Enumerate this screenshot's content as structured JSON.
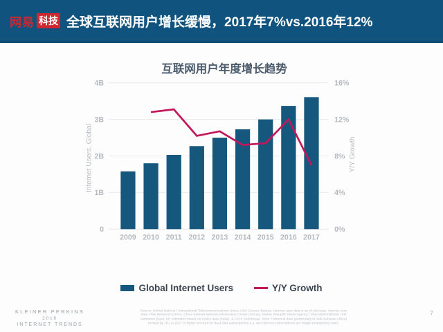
{
  "header": {
    "logo": {
      "brand": "网易",
      "sub": "科技"
    },
    "title": "全球互联网用户增长缓慢，2017年7%vs.2016年12%"
  },
  "chart_data": {
    "type": "combo-bar-line",
    "title": "互联网用户年度增长趋势",
    "categories": [
      "2009",
      "2010",
      "2011",
      "2012",
      "2013",
      "2014",
      "2015",
      "2016",
      "2017"
    ],
    "series": [
      {
        "name": "Global Internet Users",
        "type": "bar",
        "axis": "left",
        "unit": "B",
        "color": "#16587d",
        "values": [
          1.58,
          1.8,
          2.03,
          2.27,
          2.5,
          2.73,
          3.0,
          3.37,
          3.61
        ]
      },
      {
        "name": "Y/Y Growth",
        "type": "line",
        "axis": "right",
        "unit": "%",
        "color": "#c2175b",
        "values": [
          null,
          12.8,
          13.1,
          10.2,
          10.7,
          9.2,
          9.4,
          12.0,
          7.0
        ]
      }
    ],
    "left_axis": {
      "label": "Internet Users, Global",
      "min": 0,
      "max": 4,
      "tick_step": 1,
      "tick_labels": [
        "0",
        "1B",
        "2B",
        "3B",
        "4B"
      ]
    },
    "right_axis": {
      "label": "Y/Y Growth",
      "min": 0,
      "max": 16,
      "tick_step": 4,
      "tick_labels": [
        "0%",
        "4%",
        "8%",
        "12%",
        "16%"
      ]
    },
    "grid": true,
    "legend_position": "bottom",
    "colors": {
      "bar": "#16587d",
      "line": "#c2175b",
      "grid": "#e9eaeb",
      "axis_text": "#b5babe"
    }
  },
  "footer": {
    "brand_lines": [
      "KLEINER PERKINS",
      "2018",
      "INTERNET TRENDS"
    ],
    "source_lines": [
      "Source: United Nations / International Telecommunications Union, USA Census Bureau. Internet user data is as of mid-year. Internet user",
      "data: Pew Research (USA), China Internet Network Information Center (China), Islamic Republic News Agency / InternetWorldStats / KP",
      "estimates (Iran), KP estimates based on IAMAI data (India), & APJII (Indonesia). Note: Historical data (particularly in Sub-Saharan Africa)",
      "revised by ITU in 2017 to better account for dual-SIM subscriptions (i.e. two Internet subscriptions per single smartphone user)."
    ],
    "page_number": "7"
  }
}
